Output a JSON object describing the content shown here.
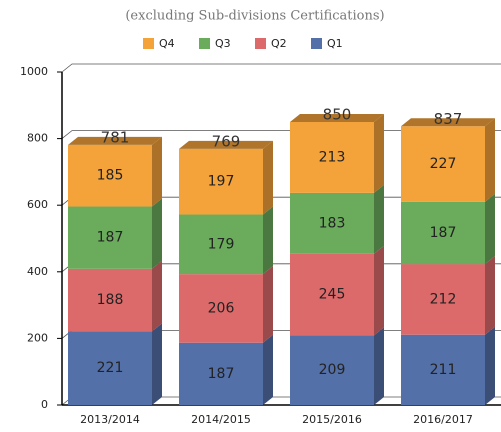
{
  "chart_data": {
    "type": "bar",
    "stacked": true,
    "subtitle": "(excluding Sub-divisions Certifications)",
    "categories": [
      "2013/2014",
      "2014/2015",
      "2015/2016",
      "2016/2017"
    ],
    "series": [
      {
        "name": "Q1",
        "color": "#5470a8",
        "values": [
          221,
          187,
          209,
          211
        ]
      },
      {
        "name": "Q2",
        "color": "#dc6a6a",
        "values": [
          188,
          206,
          245,
          212
        ]
      },
      {
        "name": "Q3",
        "color": "#6aac5c",
        "values": [
          187,
          179,
          183,
          187
        ]
      },
      {
        "name": "Q4",
        "color": "#f4a23a",
        "values": [
          185,
          197,
          213,
          227
        ]
      }
    ],
    "totals": [
      781,
      769,
      850,
      837
    ],
    "ylim": [
      0,
      1000
    ],
    "yticks": [
      0,
      200,
      400,
      600,
      800,
      1000
    ],
    "grid": true
  }
}
